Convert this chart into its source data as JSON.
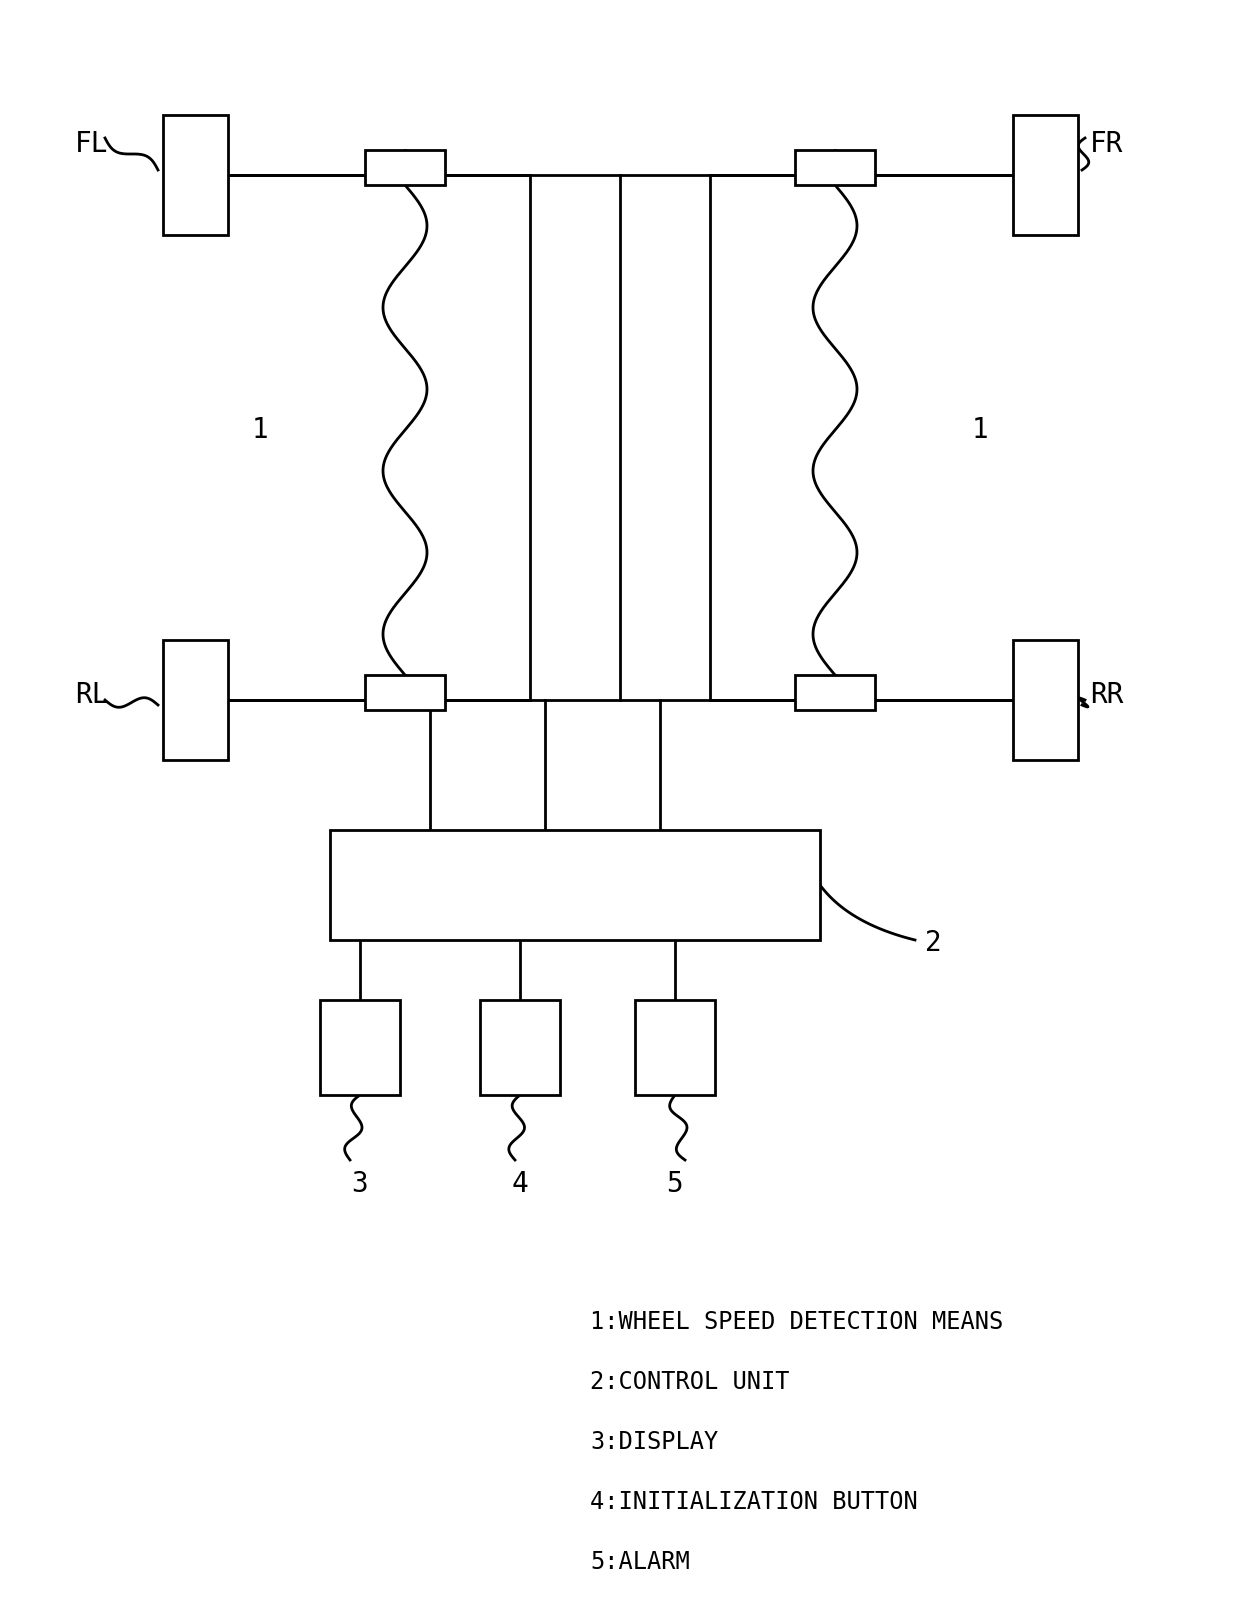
{
  "bg_color": "#ffffff",
  "line_color": "#000000",
  "font_family": "DejaVu Sans Mono",
  "legend_lines": [
    "1:WHEEL SPEED DETECTION MEANS",
    "2:CONTROL UNIT",
    "3:DISPLAY",
    "4:INITIALIZATION BUTTON",
    "5:ALARM"
  ]
}
